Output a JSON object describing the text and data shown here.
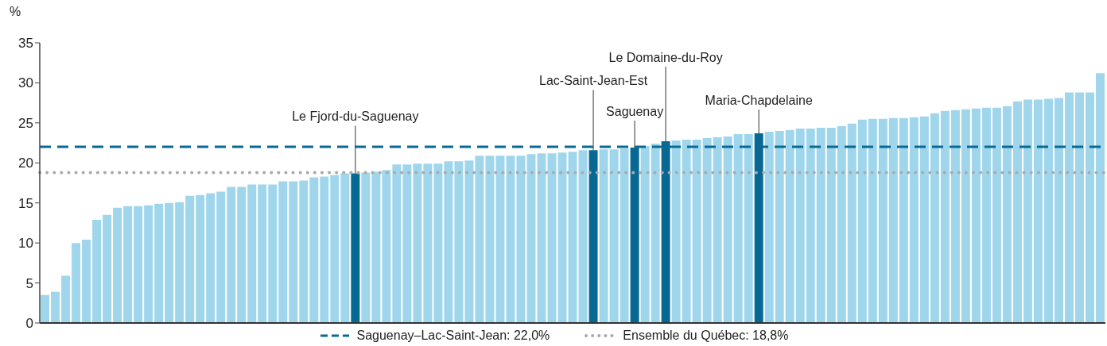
{
  "chart_data": {
    "type": "bar",
    "ylabel": "%",
    "categories": [
      null,
      null,
      null,
      null,
      null,
      null,
      null,
      null,
      null,
      null,
      null,
      null,
      null,
      null,
      null,
      null,
      null,
      null,
      null,
      null,
      null,
      null,
      null,
      null,
      null,
      null,
      null,
      null,
      null,
      null,
      "Le Fjord-du-Saguenay",
      null,
      null,
      null,
      null,
      null,
      null,
      null,
      null,
      null,
      null,
      null,
      null,
      null,
      null,
      null,
      null,
      null,
      null,
      null,
      null,
      null,
      null,
      "Lac-Saint-Jean-Est",
      null,
      null,
      null,
      "Saguenay",
      null,
      null,
      "Le Domaine-du-Roy",
      null,
      null,
      null,
      null,
      null,
      null,
      null,
      null,
      "Maria-Chapdelaine",
      null,
      null,
      null,
      null,
      null,
      null,
      null,
      null,
      null,
      null,
      null,
      null,
      null,
      null,
      null,
      null,
      null,
      null,
      null,
      null,
      null,
      null,
      null,
      null,
      null,
      null,
      null,
      null,
      null,
      null,
      null,
      null,
      null
    ],
    "values": [
      3.5,
      3.9,
      5.9,
      10.0,
      10.4,
      12.9,
      13.5,
      14.4,
      14.6,
      14.6,
      14.7,
      14.9,
      15.0,
      15.1,
      15.9,
      16.0,
      16.2,
      16.4,
      17.0,
      17.0,
      17.3,
      17.3,
      17.3,
      17.7,
      17.7,
      17.8,
      18.2,
      18.3,
      18.5,
      18.7,
      18.7,
      18.8,
      18.9,
      19.1,
      19.8,
      19.8,
      19.9,
      19.9,
      19.9,
      20.2,
      20.2,
      20.3,
      20.9,
      20.9,
      20.9,
      20.9,
      20.9,
      21.1,
      21.2,
      21.2,
      21.3,
      21.4,
      21.6,
      21.6,
      21.7,
      21.7,
      21.8,
      21.9,
      22.1,
      22.4,
      22.7,
      22.8,
      22.9,
      22.9,
      23.1,
      23.2,
      23.3,
      23.6,
      23.6,
      23.7,
      23.9,
      24.0,
      24.1,
      24.3,
      24.3,
      24.4,
      24.4,
      24.6,
      24.9,
      25.4,
      25.5,
      25.5,
      25.6,
      25.6,
      25.7,
      25.8,
      26.2,
      26.5,
      26.6,
      26.7,
      26.8,
      26.9,
      26.9,
      27.1,
      27.7,
      27.9,
      27.9,
      28.0,
      28.1,
      28.8,
      28.8,
      28.8,
      31.2
    ],
    "colors": [
      "#a0d6ec",
      "#a0d6ec",
      "#a0d6ec",
      "#a0d6ec",
      "#a0d6ec",
      "#a0d6ec",
      "#a0d6ec",
      "#a0d6ec",
      "#a0d6ec",
      "#a0d6ec",
      "#a0d6ec",
      "#a0d6ec",
      "#a0d6ec",
      "#a0d6ec",
      "#a0d6ec",
      "#a0d6ec",
      "#a0d6ec",
      "#a0d6ec",
      "#a0d6ec",
      "#a0d6ec",
      "#a0d6ec",
      "#a0d6ec",
      "#a0d6ec",
      "#a0d6ec",
      "#a0d6ec",
      "#a0d6ec",
      "#a0d6ec",
      "#a0d6ec",
      "#a0d6ec",
      "#a0d6ec",
      "#086894",
      "#a0d6ec",
      "#a0d6ec",
      "#a0d6ec",
      "#a0d6ec",
      "#a0d6ec",
      "#a0d6ec",
      "#a0d6ec",
      "#a0d6ec",
      "#a0d6ec",
      "#a0d6ec",
      "#a0d6ec",
      "#a0d6ec",
      "#a0d6ec",
      "#a0d6ec",
      "#a0d6ec",
      "#a0d6ec",
      "#a0d6ec",
      "#a0d6ec",
      "#a0d6ec",
      "#a0d6ec",
      "#a0d6ec",
      "#a0d6ec",
      "#086894",
      "#a0d6ec",
      "#a0d6ec",
      "#a0d6ec",
      "#086894",
      "#a0d6ec",
      "#a0d6ec",
      "#086894",
      "#a0d6ec",
      "#a0d6ec",
      "#a0d6ec",
      "#a0d6ec",
      "#a0d6ec",
      "#a0d6ec",
      "#a0d6ec",
      "#a0d6ec",
      "#086894",
      "#a0d6ec",
      "#a0d6ec",
      "#a0d6ec",
      "#a0d6ec",
      "#a0d6ec",
      "#a0d6ec",
      "#a0d6ec",
      "#a0d6ec",
      "#a0d6ec",
      "#a0d6ec",
      "#a0d6ec",
      "#a0d6ec",
      "#a0d6ec",
      "#a0d6ec",
      "#a0d6ec",
      "#a0d6ec",
      "#a0d6ec",
      "#a0d6ec",
      "#a0d6ec",
      "#a0d6ec",
      "#a0d6ec",
      "#a0d6ec",
      "#a0d6ec",
      "#a0d6ec",
      "#a0d6ec",
      "#a0d6ec",
      "#a0d6ec",
      "#a0d6ec",
      "#a0d6ec",
      "#a0d6ec",
      "#a0d6ec",
      "#a0d6ec",
      "#a0d6ec"
    ],
    "ylim": [
      0,
      35
    ],
    "yticks": [
      0,
      5,
      10,
      15,
      20,
      25,
      30,
      35
    ],
    "legend": "bottom",
    "ref_lines": [
      {
        "axis": "y",
        "value": 22.0,
        "label": "Saguenay–Lac-Saint-Jean: 22,0%",
        "color": "#0a6a96",
        "line_style": "dashed"
      },
      {
        "axis": "y",
        "value": 18.8,
        "label": "Ensemble du Québec: 18,8%",
        "color": "#aaaaaa",
        "line_style": "dotted"
      }
    ]
  }
}
